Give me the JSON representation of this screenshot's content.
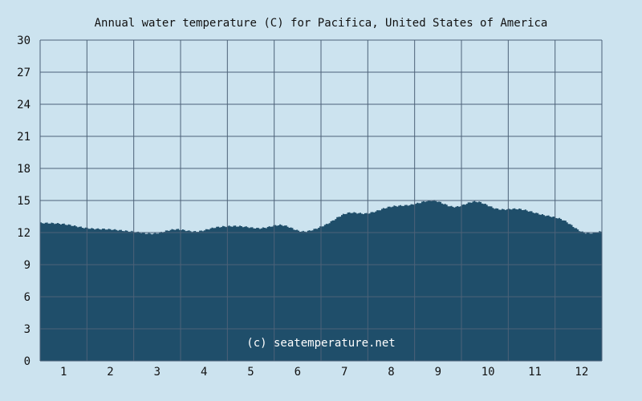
{
  "chart_data": {
    "type": "area",
    "title": "Annual water temperature (C) for Pacifica, United States of America",
    "xlabel": "",
    "ylabel": "",
    "x_ticks": [
      "1",
      "2",
      "3",
      "4",
      "5",
      "6",
      "7",
      "8",
      "9",
      "10",
      "11",
      "12"
    ],
    "y_ticks": [
      "0",
      "3",
      "6",
      "9",
      "12",
      "15",
      "18",
      "21",
      "24",
      "27",
      "30"
    ],
    "ylim": [
      0,
      30
    ],
    "grid": true,
    "x": [
      1,
      15,
      32,
      46,
      60,
      74,
      88,
      102,
      115,
      129,
      143,
      157,
      171,
      185,
      199,
      213,
      227,
      241,
      255,
      269,
      283,
      297,
      311,
      325,
      339,
      353,
      365
    ],
    "values": [
      12.9,
      12.8,
      12.4,
      12.3,
      12.1,
      11.9,
      12.3,
      12.1,
      12.5,
      12.6,
      12.4,
      12.7,
      12.1,
      12.7,
      13.8,
      13.8,
      14.4,
      14.6,
      15.0,
      14.4,
      14.9,
      14.2,
      14.2,
      13.7,
      13.2,
      12.0,
      12.1
    ],
    "colors": {
      "fill": "#1f4e6a",
      "grid": "#4d6278",
      "background": "#cce3ef"
    },
    "credit": "(c) seatemperature.net"
  }
}
